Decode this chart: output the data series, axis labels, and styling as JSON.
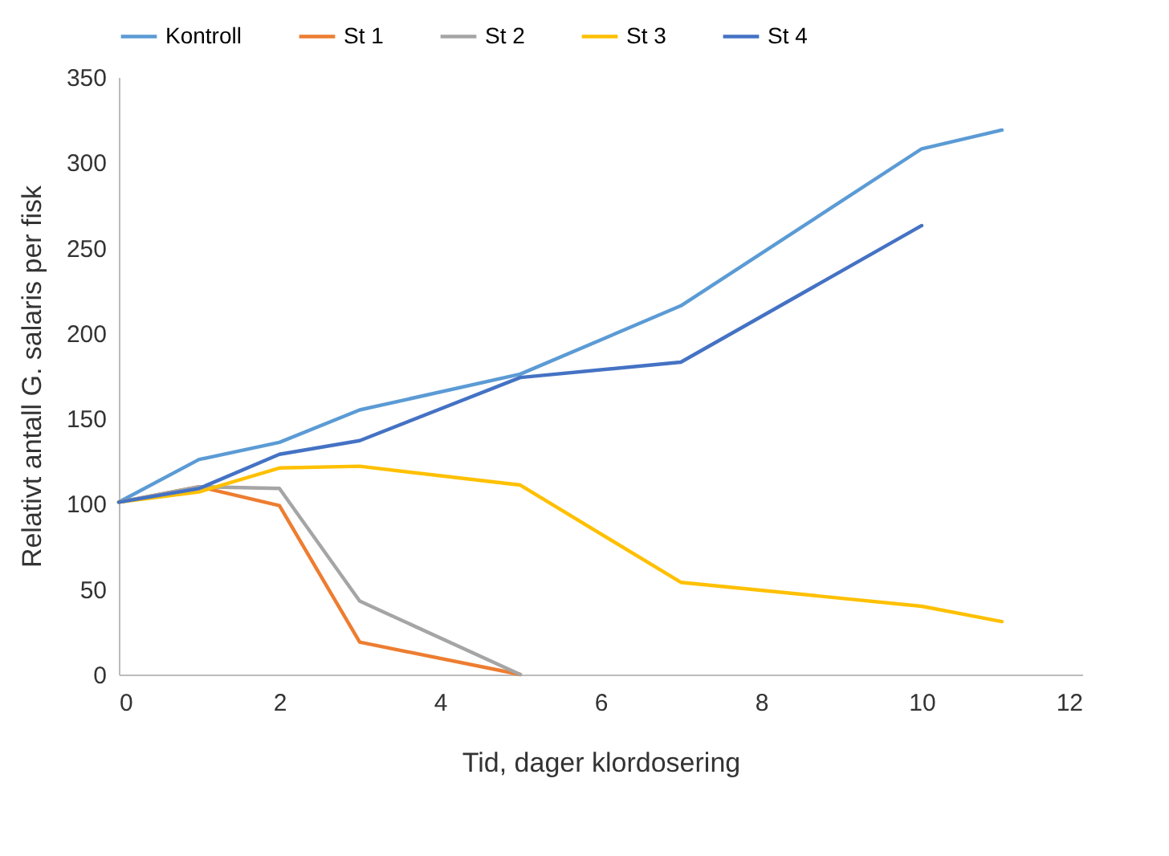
{
  "chart_data": {
    "type": "line",
    "xlabel": "Tid, dager klordosering",
    "ylabel": "Relativt antall G. salaris per fisk",
    "xlim": [
      0,
      12
    ],
    "xticks": [
      0,
      2,
      4,
      6,
      8,
      10,
      12
    ],
    "ylim": [
      0,
      350
    ],
    "yticks": [
      0,
      50,
      100,
      150,
      200,
      250,
      300,
      350
    ],
    "grid": false,
    "legend": "top",
    "marker": "none",
    "series": [
      {
        "name": "Kontroll",
        "color": "#5b9bd5",
        "x": [
          0,
          1,
          2,
          3,
          5,
          7,
          10,
          11
        ],
        "values": [
          101,
          126,
          136,
          155,
          176,
          216,
          308,
          319
        ]
      },
      {
        "name": "St 1",
        "color": "#ed7d31",
        "x": [
          0,
          1,
          2,
          3,
          5
        ],
        "values": [
          101,
          110,
          99,
          19,
          0
        ]
      },
      {
        "name": "St 2",
        "color": "#a5a5a5",
        "x": [
          0,
          1,
          2,
          3,
          5
        ],
        "values": [
          101,
          110,
          109,
          43,
          0
        ]
      },
      {
        "name": "St 3",
        "color": "#ffc000",
        "x": [
          0,
          1,
          2,
          3,
          5,
          7,
          10,
          11
        ],
        "values": [
          101,
          107,
          121,
          122,
          111,
          54,
          40,
          31
        ]
      },
      {
        "name": "St 4",
        "color": "#4472c4",
        "x": [
          0,
          1,
          2,
          3,
          5,
          7,
          10
        ],
        "values": [
          101,
          109,
          129,
          137,
          174,
          183,
          263
        ]
      }
    ]
  }
}
